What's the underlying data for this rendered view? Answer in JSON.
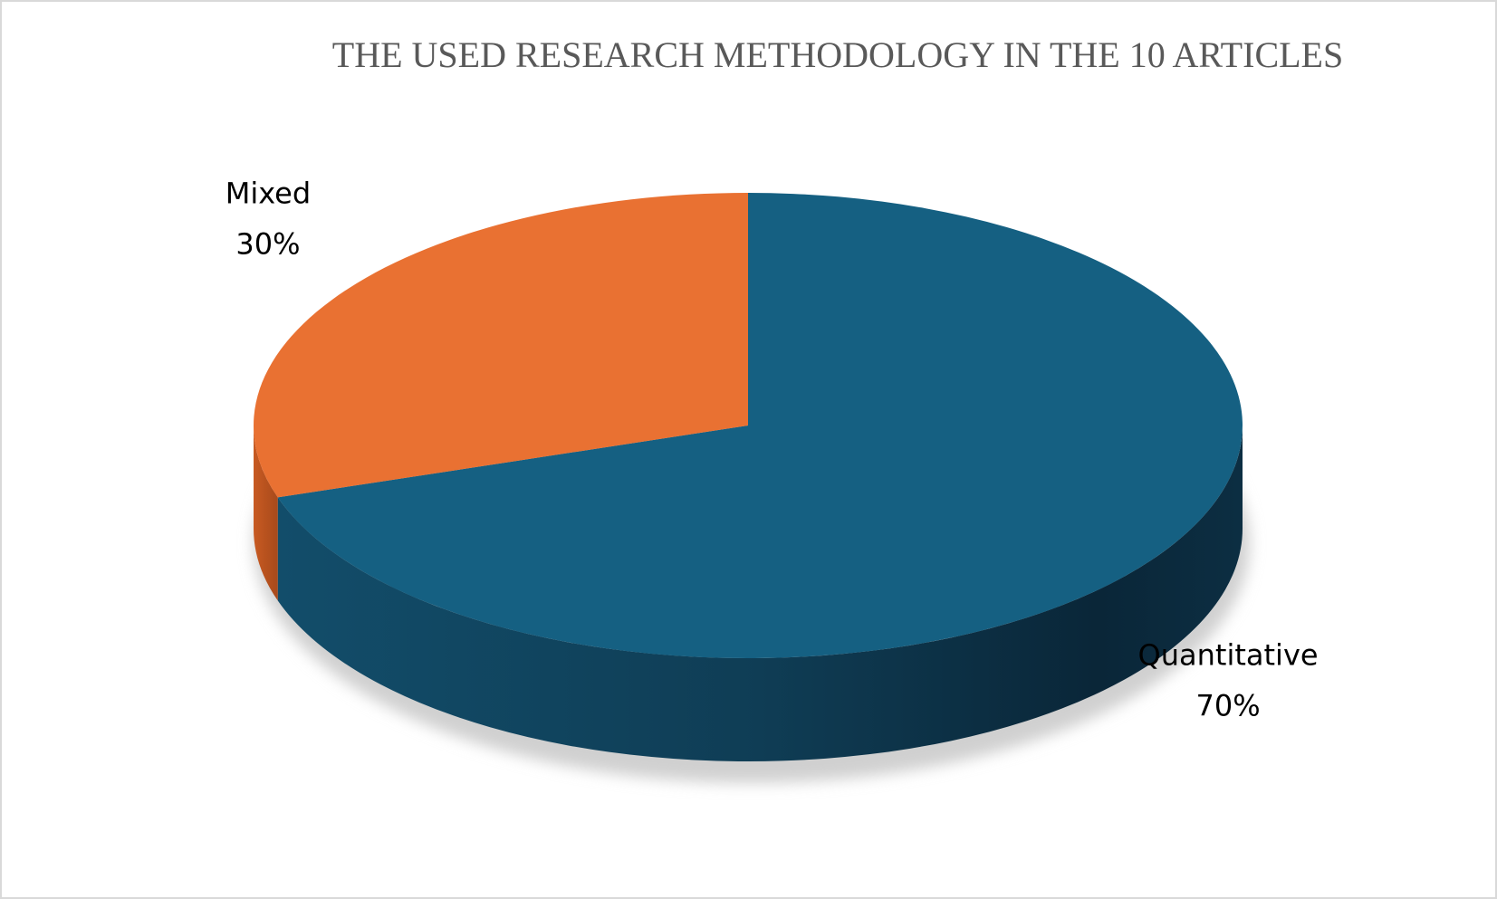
{
  "chart_data": {
    "type": "pie",
    "title": "THE USED RESEARCH METHODOLOGY IN THE 10 ARTICLES",
    "categories": [
      "Quantitative",
      "Mixed"
    ],
    "values": [
      70,
      30
    ],
    "value_labels": [
      "70%",
      "30%"
    ],
    "colors": [
      "#156082",
      "#E97132"
    ]
  }
}
